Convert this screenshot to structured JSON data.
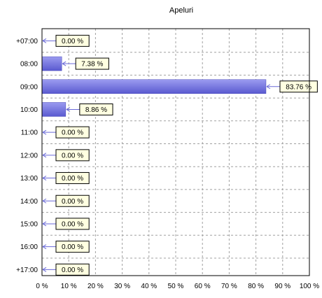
{
  "chart_data": {
    "type": "bar",
    "orientation": "horizontal",
    "title": "Apeluri",
    "xlabel": "",
    "ylabel": "",
    "categories": [
      "+07:00",
      "08:00",
      "09:00",
      "10:00",
      "11:00",
      "12:00",
      "13:00",
      "14:00",
      "15:00",
      "16:00",
      "+17:00"
    ],
    "values": [
      0,
      7.38,
      83.76,
      8.86,
      0,
      0,
      0,
      0,
      0,
      0,
      0
    ],
    "value_labels": [
      "0.00 %",
      "7.38 %",
      "83.76 %",
      "8.86 %",
      "0.00 %",
      "0.00 %",
      "0.00 %",
      "0.00 %",
      "0.00 %",
      "0.00 %",
      "0.00 %"
    ],
    "xlim": [
      0,
      100
    ],
    "x_ticks": [
      0,
      10,
      20,
      30,
      40,
      50,
      60,
      70,
      80,
      90,
      100
    ],
    "x_tick_labels": [
      "0 %",
      "10 %",
      "20 %",
      "30 %",
      "40 %",
      "50 %",
      "60 %",
      "70 %",
      "80 %",
      "90 %",
      "100 %"
    ],
    "grid": true,
    "legend": "none",
    "colors": {
      "bar_top": "#9b9bf0",
      "bar_bottom": "#5a5ad0",
      "bar_stroke": "#4848b8",
      "grid": "#a0a0a0",
      "label_fill": "#ffffe1",
      "label_stroke": "#000000",
      "connector": "#6a6ad8",
      "frame": "#000000"
    }
  }
}
